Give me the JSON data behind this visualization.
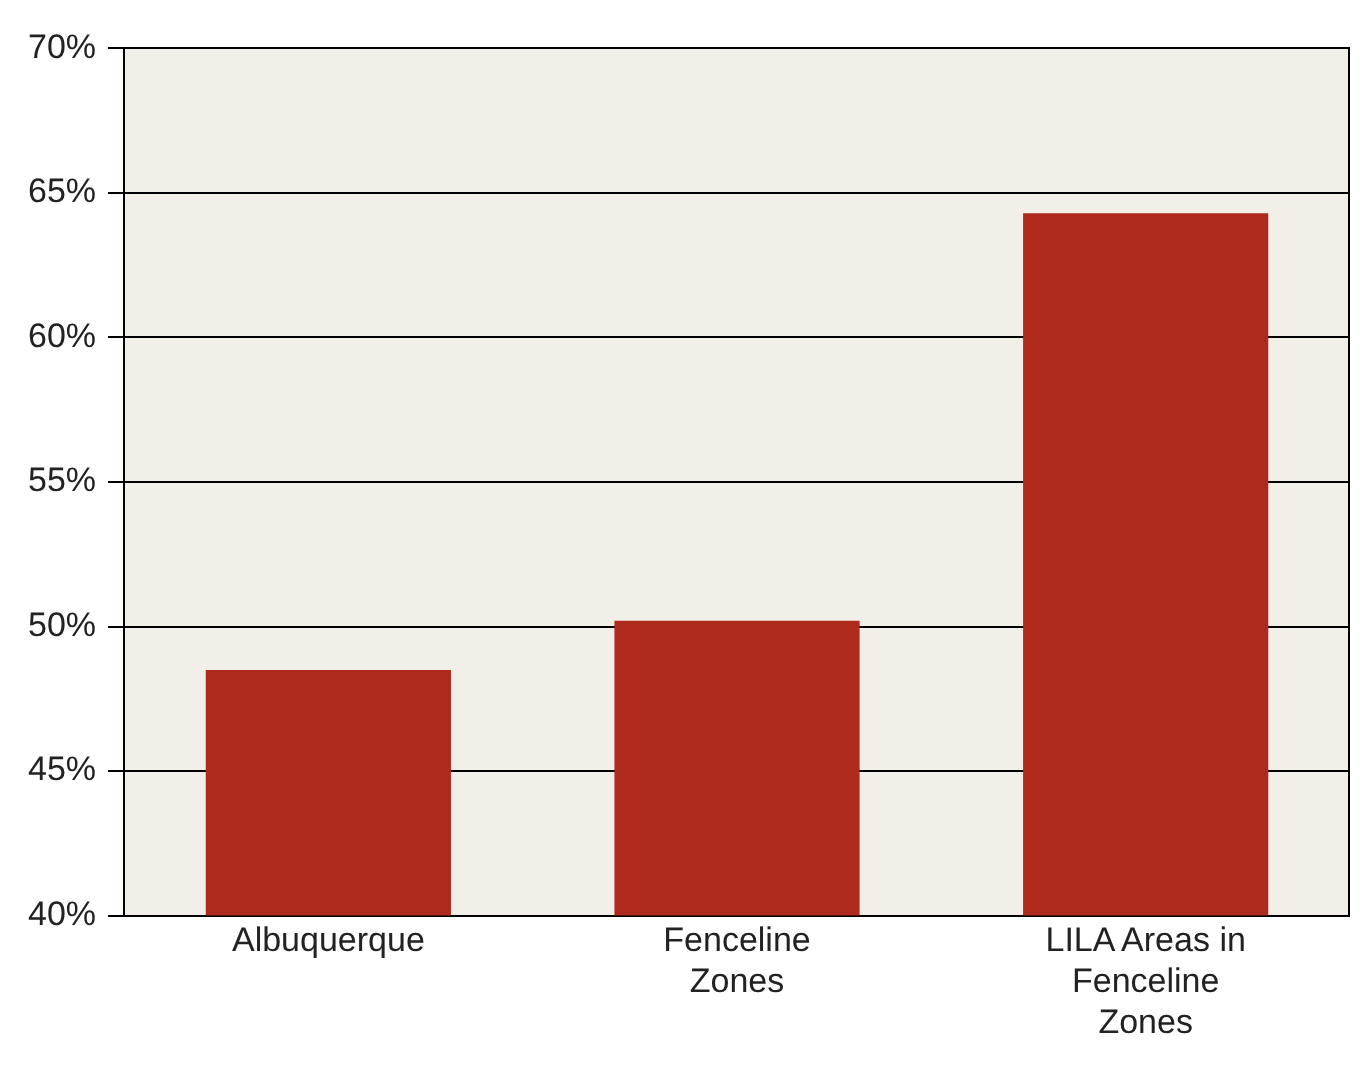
{
  "chart_data": {
    "type": "bar",
    "categories": [
      "Albuquerque",
      "Fenceline Zones",
      "LILA Areas in Fenceline Zones"
    ],
    "values": [
      48.5,
      50.2,
      64.3
    ],
    "color": "#ae2a1d",
    "ylim": [
      40,
      70
    ],
    "yticks": [
      {
        "value": 40,
        "label": "40%"
      },
      {
        "value": 45,
        "label": "45%"
      },
      {
        "value": 50,
        "label": "50%"
      },
      {
        "value": 55,
        "label": "55%"
      },
      {
        "value": 60,
        "label": "60%"
      },
      {
        "value": 65,
        "label": "65%"
      },
      {
        "value": 70,
        "label": "70%"
      }
    ],
    "grid": "y"
  }
}
